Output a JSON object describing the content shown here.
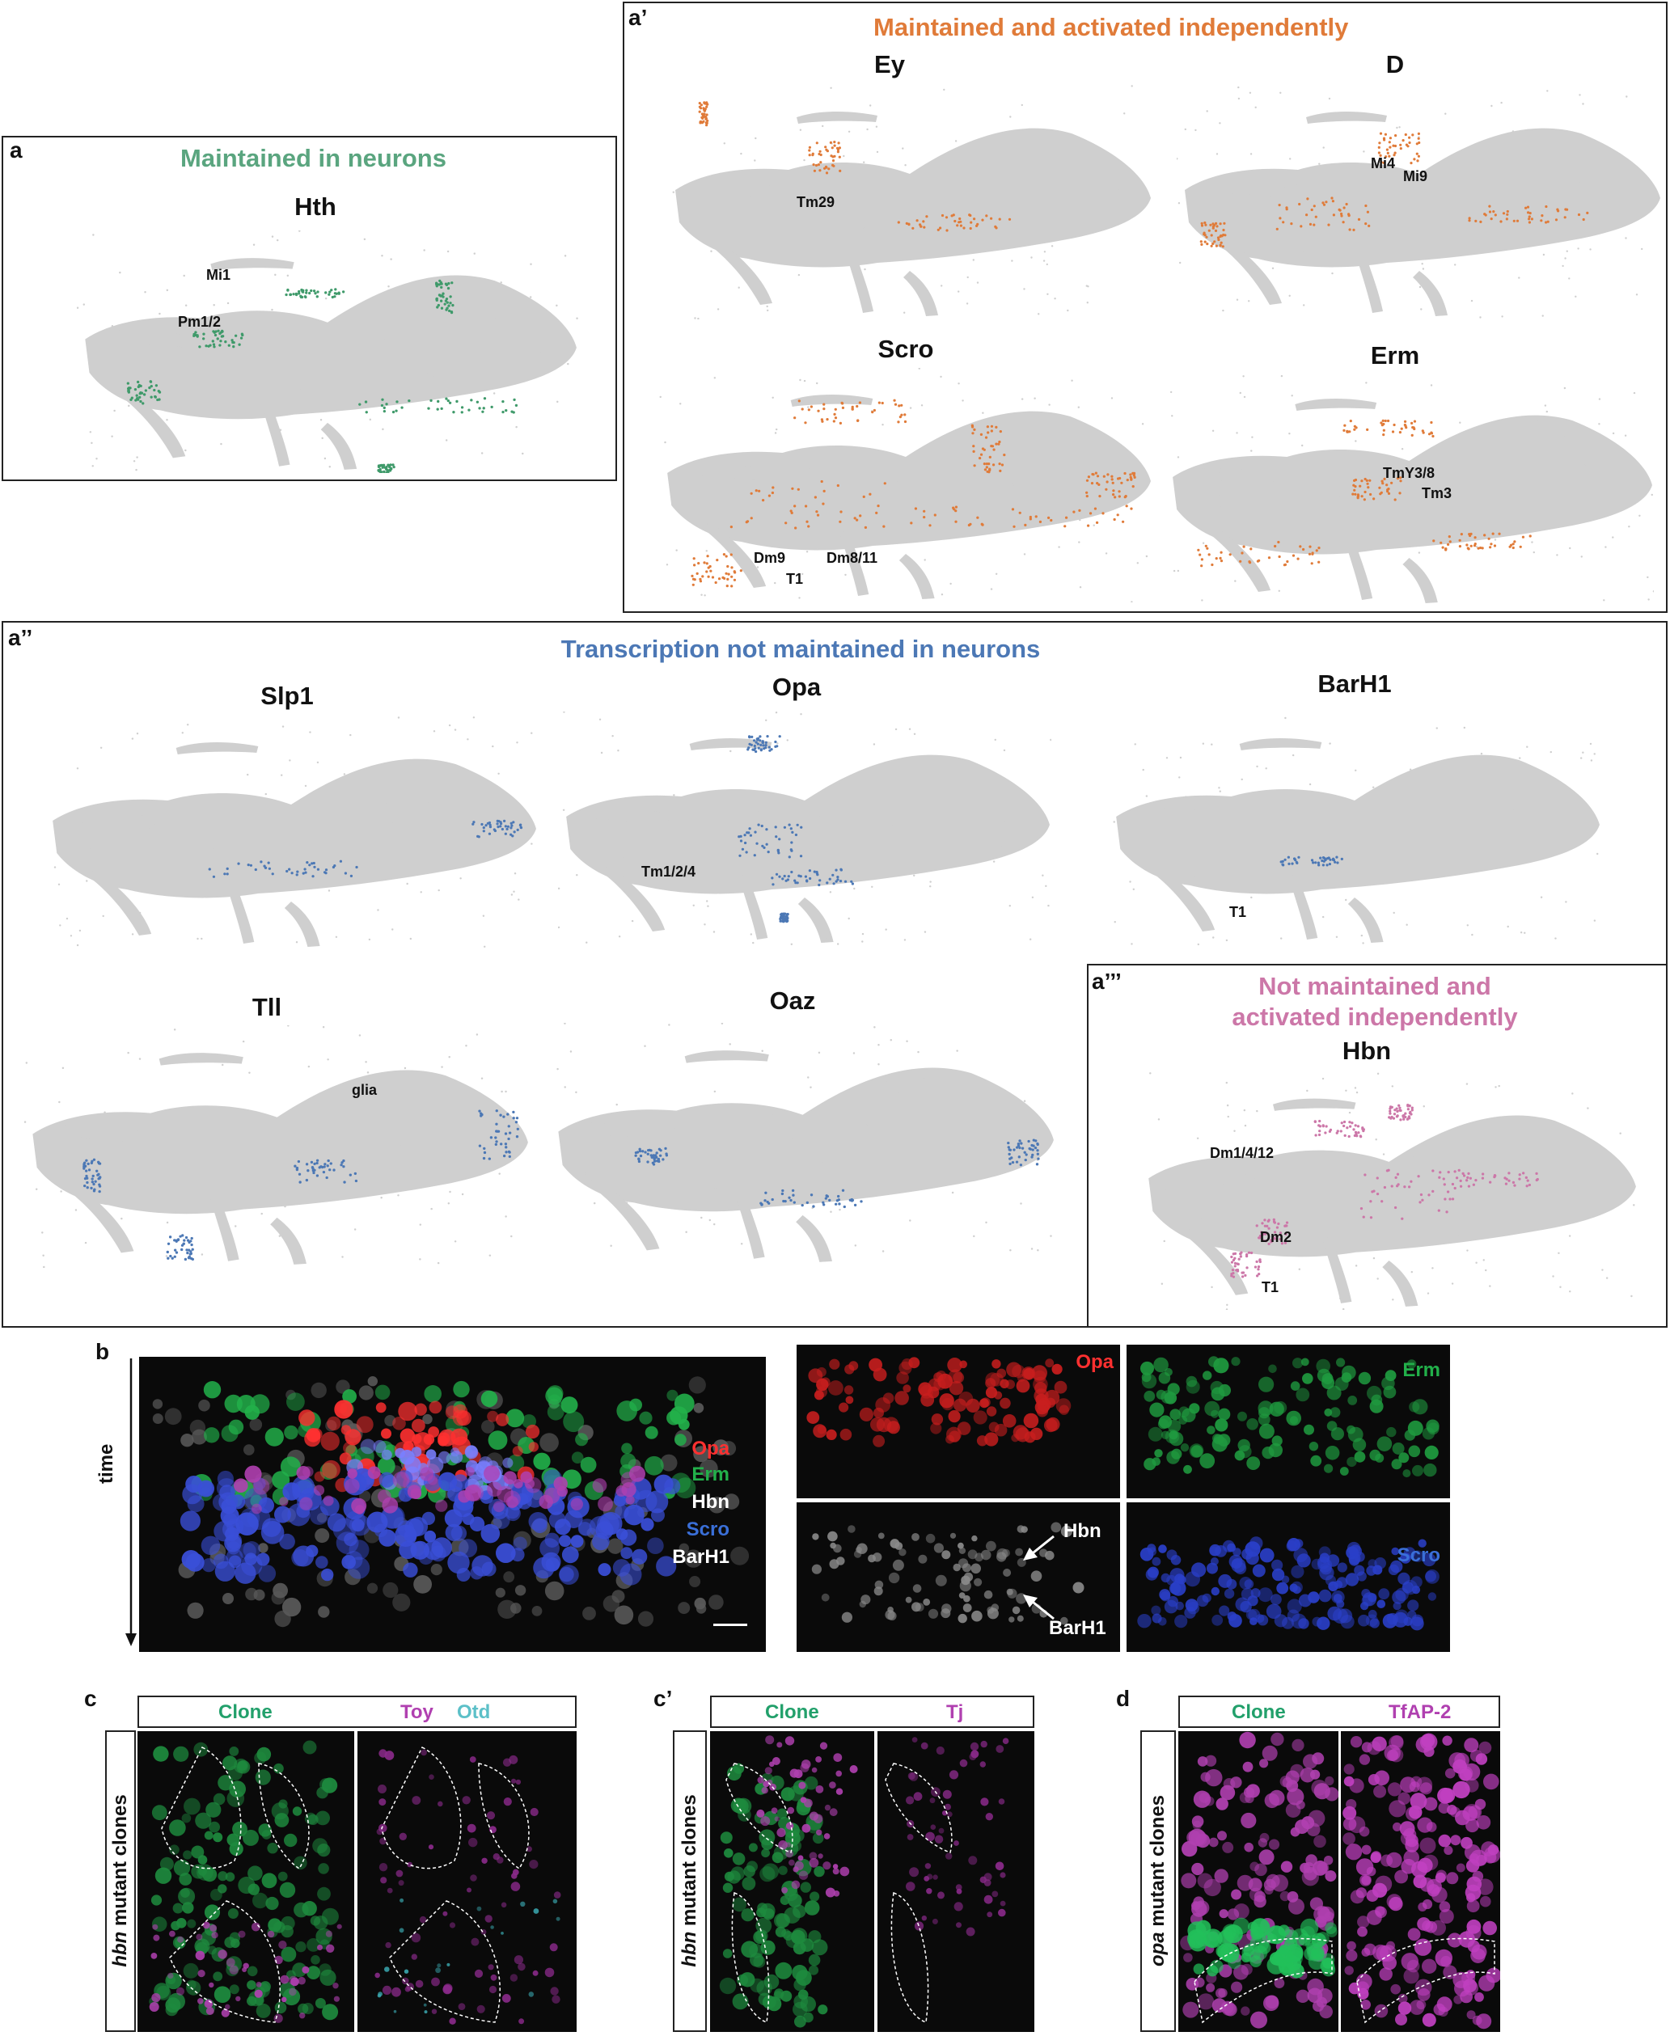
{
  "panels": {
    "a": {
      "label": "a",
      "title": "Maintained in neurons",
      "color": "#5aa57f",
      "genes": [
        {
          "name": "Hth",
          "annotations": [
            "Mi1",
            "Pm1/2"
          ]
        }
      ]
    },
    "a1": {
      "label": "a’",
      "title": "Maintained and activated independently",
      "color": "#e07b39",
      "genes": [
        {
          "name": "Ey",
          "annotations": [
            "Tm29"
          ]
        },
        {
          "name": "D",
          "annotations": [
            "Mi4",
            "Mi9"
          ]
        },
        {
          "name": "Scro",
          "annotations": [
            "Dm9",
            "Dm8/11",
            "T1"
          ]
        },
        {
          "name": "Erm",
          "annotations": [
            "TmY3/8",
            "Tm3"
          ]
        }
      ]
    },
    "a2": {
      "label": "a’’",
      "title": "Transcription not maintained in neurons",
      "color": "#4c78b5",
      "genes": [
        {
          "name": "Slp1",
          "annotations": []
        },
        {
          "name": "Opa",
          "annotations": [
            "Tm1/2/4"
          ]
        },
        {
          "name": "BarH1",
          "annotations": [
            "T1"
          ]
        },
        {
          "name": "Tll",
          "annotations": [
            "glia"
          ]
        },
        {
          "name": "Oaz",
          "annotations": []
        }
      ]
    },
    "a3": {
      "label": "a’’’",
      "title_line1": "Not maintained and",
      "title_line2": "activated independently",
      "color": "#cc77a8",
      "genes": [
        {
          "name": "Hbn",
          "annotations": [
            "Dm1/4/12",
            "Dm2",
            "T1"
          ]
        }
      ]
    },
    "b": {
      "label": "b",
      "axis_label": "time",
      "merge_channels": [
        {
          "name": "Opa",
          "color": "#ff3030"
        },
        {
          "name": "Erm",
          "color": "#22b04a"
        },
        {
          "name": "Hbn",
          "color": "#ffffff"
        },
        {
          "name": "Scro",
          "color": "#3a6fd8"
        },
        {
          "name": "BarH1",
          "color": "#ffffff"
        }
      ],
      "single_channels": [
        {
          "name": "Opa",
          "color": "#ff3030"
        },
        {
          "name": "Erm",
          "color": "#22b04a"
        },
        {
          "name": "Hbn",
          "color": "#ffffff"
        },
        {
          "name": "Scro",
          "color": "#3a6fd8"
        }
      ],
      "arrow_labels": [
        "Hbn",
        "BarH1"
      ]
    },
    "c": {
      "label": "c",
      "side_label_italic": "hbn",
      "side_label_rest": " mutant clones",
      "headers": [
        {
          "name": "Clone",
          "color": "#22a06b"
        },
        {
          "name": "Toy",
          "color": "#b040b0"
        },
        {
          "name": "Otd",
          "color": "#5cc0c8"
        }
      ]
    },
    "c1": {
      "label": "c’",
      "side_label_italic": "hbn",
      "side_label_rest": " mutant clones",
      "headers": [
        {
          "name": "Clone",
          "color": "#22a06b"
        },
        {
          "name": "Tj",
          "color": "#b040b0"
        }
      ]
    },
    "d": {
      "label": "d",
      "side_label_italic": "opa",
      "side_label_rest": " mutant clones",
      "headers": [
        {
          "name": "Clone",
          "color": "#22a06b"
        },
        {
          "name": "TfAP-2",
          "color": "#b040b0"
        }
      ]
    }
  }
}
